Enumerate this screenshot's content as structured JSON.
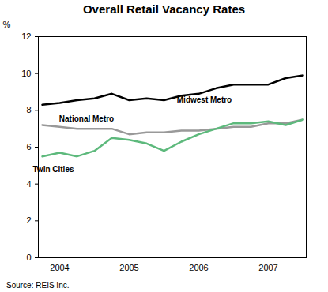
{
  "chart_data": {
    "type": "line",
    "title": "Overall Retail Vacancy Rates",
    "caption": "Source: REIS Inc.",
    "y_label": "%",
    "categories": [
      null,
      "2004",
      null,
      null,
      null,
      "2005",
      null,
      null,
      null,
      "2006",
      null,
      null,
      null,
      "2007",
      null,
      null
    ],
    "series": [
      {
        "name": "Midwest Metro",
        "color": "#000000",
        "values": [
          8.3,
          8.4,
          8.55,
          8.65,
          8.9,
          8.55,
          8.65,
          8.55,
          8.8,
          8.9,
          9.2,
          9.4,
          9.4,
          9.4,
          9.75,
          9.9
        ]
      },
      {
        "name": "National Metro",
        "color": "#999999",
        "values": [
          7.2,
          7.1,
          7.0,
          7.0,
          7.0,
          6.7,
          6.8,
          6.8,
          6.9,
          6.9,
          7.0,
          7.1,
          7.1,
          7.3,
          7.3,
          7.5
        ]
      },
      {
        "name": "Twin Cities",
        "color": "#5db97c",
        "values": [
          5.5,
          5.7,
          5.5,
          5.8,
          6.5,
          6.4,
          6.2,
          5.8,
          6.3,
          6.7,
          7.0,
          7.3,
          7.3,
          7.4,
          7.2,
          7.5
        ]
      }
    ],
    "ylim": [
      0,
      12
    ],
    "yticks": [
      0,
      2,
      4,
      6,
      8,
      10,
      12
    ],
    "grid": false
  }
}
